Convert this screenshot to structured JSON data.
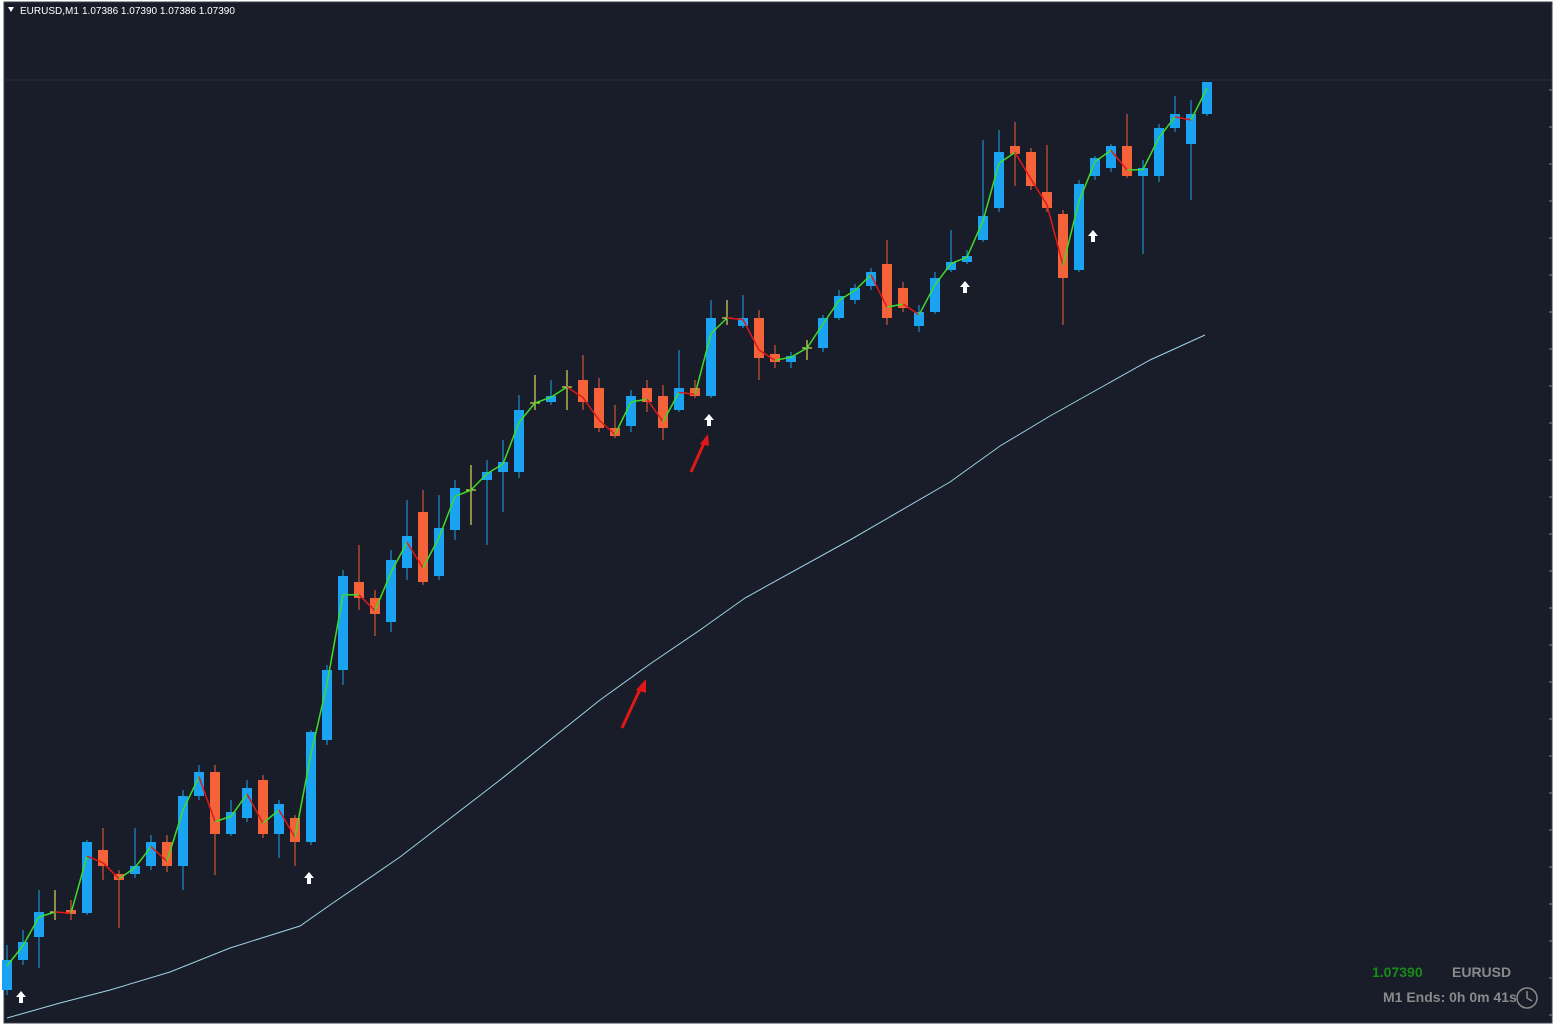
{
  "header": {
    "symbol": "EURUSD,M1",
    "ohlc": "1.07386 1.07390 1.07386 1.07390"
  },
  "info": {
    "price": "1.07390",
    "symbol": "EURUSD",
    "timer": "M1 Ends: 0h 0m 41s"
  }
}
